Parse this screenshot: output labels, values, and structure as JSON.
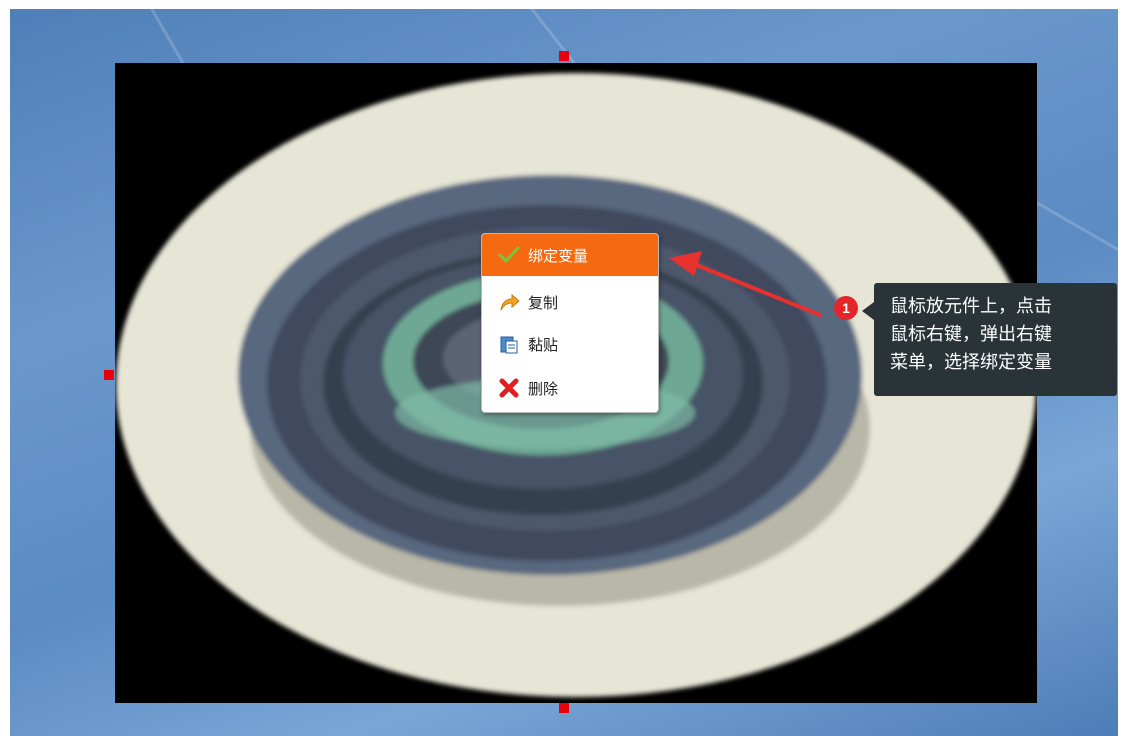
{
  "context_menu": {
    "items": [
      {
        "label": "绑定变量",
        "icon": "check-icon",
        "active": true
      },
      {
        "label": "复制",
        "icon": "copy-arrow-icon",
        "active": false
      },
      {
        "label": "黏贴",
        "icon": "paste-icon",
        "active": false
      },
      {
        "label": "删除",
        "icon": "delete-x-icon",
        "active": false
      }
    ]
  },
  "annotation": {
    "step_number": "1",
    "lines": [
      "鼠标放元件上，点击",
      "鼠标右键，弹出右键",
      "菜单，选择绑定变量"
    ]
  },
  "colors": {
    "menu_active_bg": "#f56a10",
    "tooltip_bg": "#2a3338",
    "badge": "#e3262b",
    "handle": "#e8000b",
    "arrow": "#e8312f"
  }
}
